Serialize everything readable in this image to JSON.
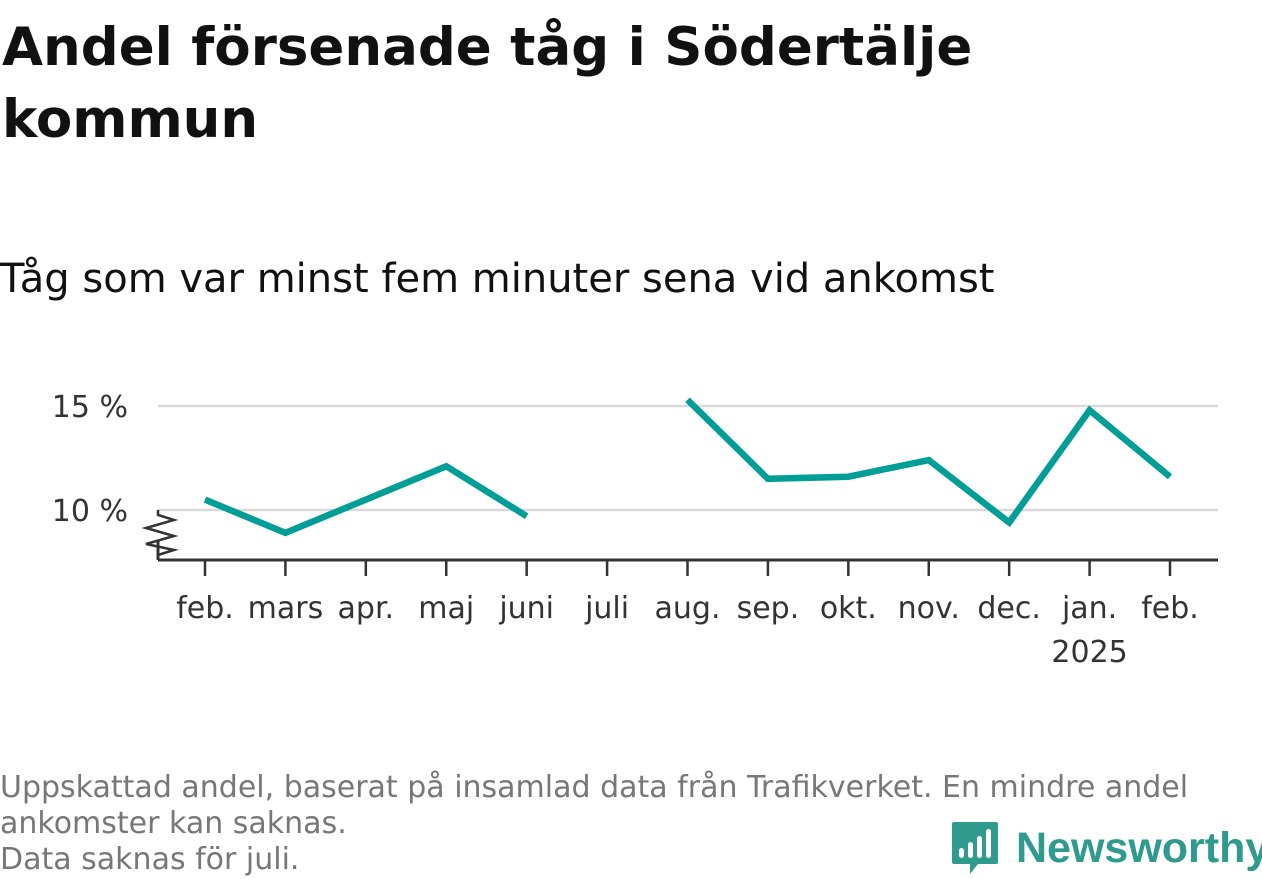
{
  "header": {
    "title": "Andel försenade tåg i Södertälje kommun",
    "subtitle": "Tåg som var minst fem minuter sena vid ankomst"
  },
  "chart_data": {
    "type": "line",
    "title": "Andel försenade tåg i Södertälje kommun",
    "subtitle": "Tåg som var minst fem minuter sena vid ankomst",
    "x": [
      "feb.",
      "mars",
      "apr.",
      "maj",
      "juni",
      "juli",
      "aug.",
      "sep.",
      "okt.",
      "nov.",
      "dec.",
      "jan.",
      "feb."
    ],
    "x_sublabels": [
      "",
      "",
      "",
      "",
      "",
      "",
      "",
      "",
      "",
      "",
      "",
      "2025",
      ""
    ],
    "series": [
      {
        "values": [
          10.5,
          8.9,
          10.5,
          12.1,
          9.7,
          null,
          15.3,
          11.5,
          11.6,
          12.4,
          9.4,
          14.8,
          11.6
        ],
        "color": "#009e96"
      }
    ],
    "y_ticks": [
      10,
      15
    ],
    "y_tick_labels": [
      "10 %",
      "15 %"
    ],
    "ylim": [
      7.6,
      16
    ],
    "y_axis_break": true,
    "grid": true,
    "legend": "none"
  },
  "footer": {
    "note_line1": "Uppskattad andel, baserat på insamlad data från Trafikverket. En mindre andel",
    "note_line2": "ankomster kan saknas.",
    "note_line3": "Data saknas för juli."
  },
  "logo": {
    "text": "Newsworthy",
    "icon": "newsworthy-logo-icon",
    "color": "#2f9b8e"
  }
}
